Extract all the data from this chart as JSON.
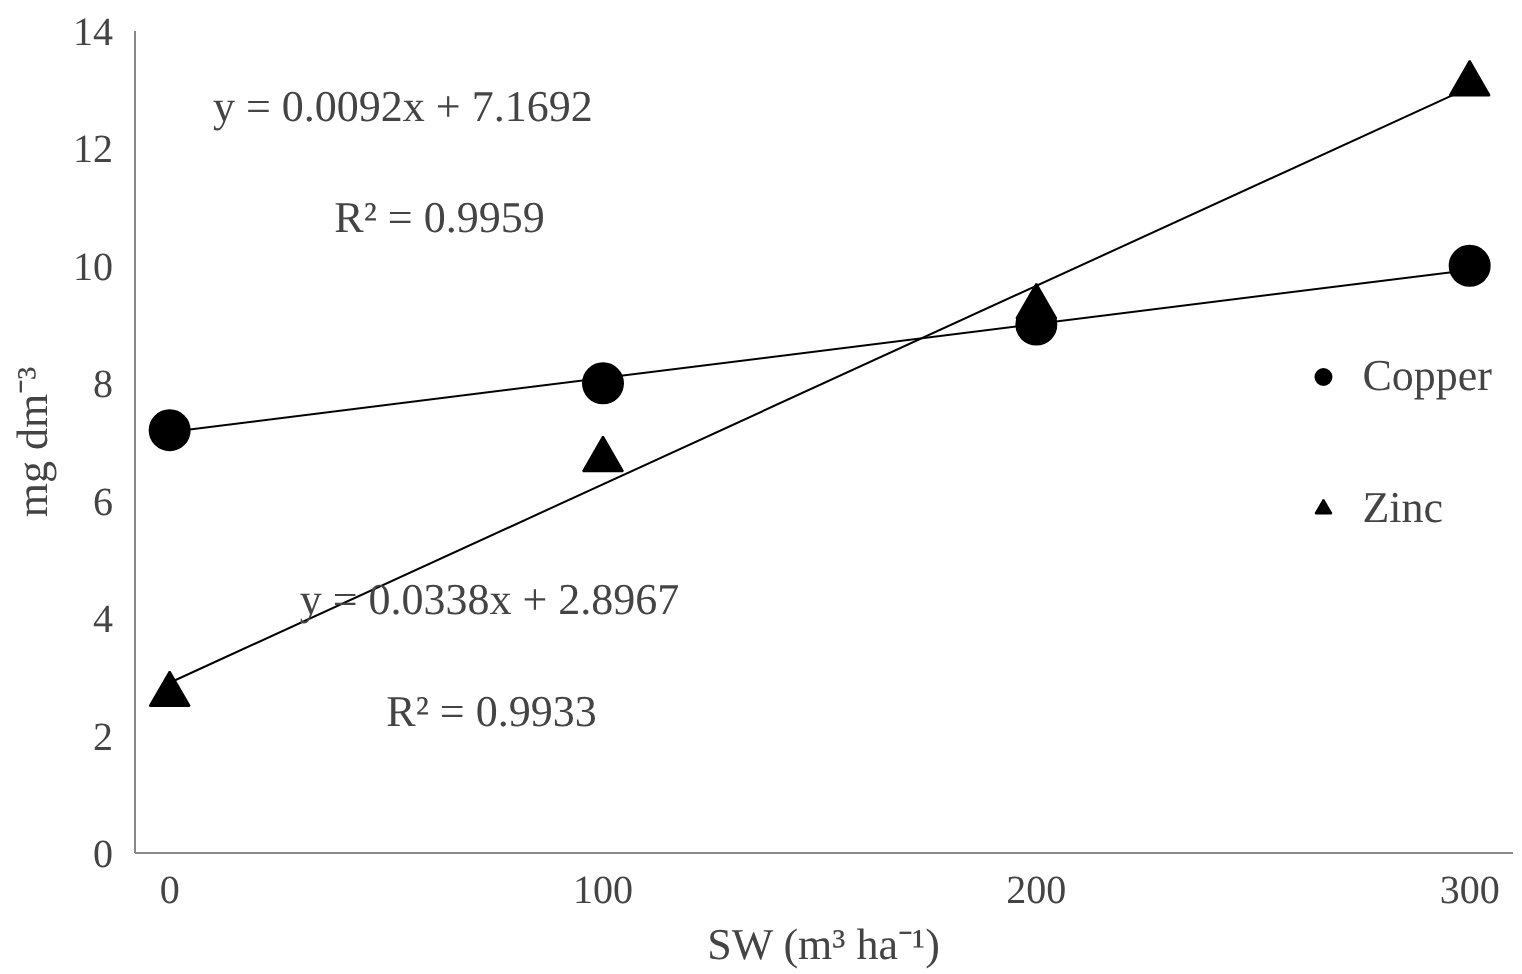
{
  "chart_data": {
    "type": "scatter",
    "xlabel": "SW (m³ ha⁻¹)",
    "ylabel": "mg dm⁻³",
    "xlim": [
      -8,
      310
    ],
    "xticks": [
      0,
      100,
      200,
      300
    ],
    "ylim": [
      0,
      14
    ],
    "yticks": [
      0,
      2,
      4,
      6,
      8,
      10,
      12,
      14
    ],
    "grid": false,
    "legend": "right",
    "series": [
      {
        "name": "Copper",
        "color": "#000000",
        "marker": "circle",
        "x": [
          0,
          100,
          200,
          300
        ],
        "values": [
          7.2,
          8.0,
          9.0,
          10.0
        ]
      },
      {
        "name": "Zinc",
        "color": "#000000",
        "marker": "triangle",
        "x": [
          0,
          100,
          200,
          300
        ],
        "values": [
          2.7,
          6.7,
          9.3,
          13.1
        ]
      },
      {
        "type": "line",
        "color": "#000000",
        "marker": "none",
        "line_style": "solid",
        "x": [
          0,
          300
        ],
        "values": [
          7.17,
          9.93
        ]
      },
      {
        "type": "line",
        "color": "#000000",
        "marker": "none",
        "line_style": "solid",
        "x": [
          0,
          300
        ],
        "values": [
          2.9,
          13.04
        ]
      }
    ],
    "annotations": [
      "y = 0.0092x  + 7.1692",
      "R² = 0.9959",
      "y = 0.0338x  + 2.8967",
      "R² = 0.9933"
    ]
  }
}
